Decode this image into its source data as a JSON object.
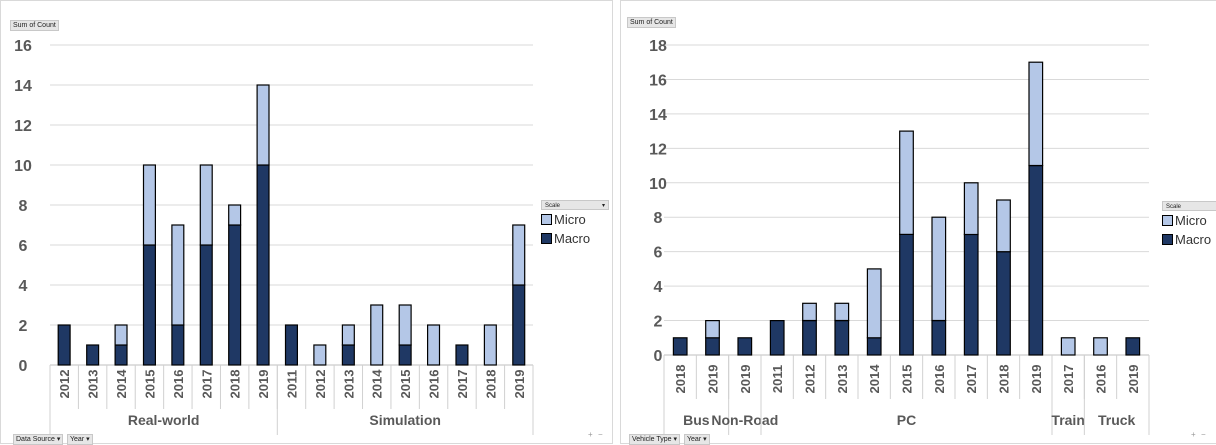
{
  "colors": {
    "micro": "#b4c7e7",
    "macro": "#1f3864",
    "outline": "#000000",
    "grid": "#d9d9d9",
    "tick": "#595959"
  },
  "labels": {
    "sum_of_count": "Sum of Count",
    "scale": "Scale",
    "micro": "Micro",
    "macro": "Macro",
    "plus": "+",
    "minus": "−"
  },
  "left": {
    "filter_data_source": "Data Source ▾",
    "filter_year": "Year ▾"
  },
  "right": {
    "filter_vehicle_type": "Vehicle Type ▾",
    "filter_year": "Year ▾"
  },
  "chart_data": [
    {
      "type": "bar",
      "stacked": true,
      "ylim": [
        0,
        16
      ],
      "yticks": [
        0,
        2,
        4,
        6,
        8,
        10,
        12,
        14,
        16
      ],
      "legend": "right",
      "grid": true,
      "categories": [
        "2012",
        "2013",
        "2014",
        "2015",
        "2016",
        "2017",
        "2018",
        "2019",
        "2011",
        "2012",
        "2013",
        "2014",
        "2015",
        "2016",
        "2017",
        "2018",
        "2019"
      ],
      "groups": [
        {
          "label": "Real-world",
          "count": 8
        },
        {
          "label": "Simulation",
          "count": 9
        }
      ],
      "series": [
        {
          "name": "Macro",
          "values": [
            2,
            1,
            1,
            6,
            2,
            6,
            7,
            10,
            2,
            0,
            1,
            0,
            1,
            0,
            1,
            0,
            4
          ]
        },
        {
          "name": "Micro",
          "values": [
            0,
            0,
            1,
            4,
            5,
            4,
            1,
            4,
            0,
            1,
            1,
            3,
            2,
            2,
            0,
            2,
            3
          ]
        }
      ]
    },
    {
      "type": "bar",
      "stacked": true,
      "ylim": [
        0,
        18
      ],
      "yticks": [
        0,
        2,
        4,
        6,
        8,
        10,
        12,
        14,
        16,
        18
      ],
      "legend": "right",
      "grid": true,
      "categories": [
        "2018",
        "2019",
        "2019",
        "2011",
        "2012",
        "2013",
        "2014",
        "2015",
        "2016",
        "2017",
        "2018",
        "2019",
        "2017",
        "2016",
        "2019"
      ],
      "groups": [
        {
          "label": "Bus",
          "count": 2
        },
        {
          "label": "Non-Road",
          "count": 1
        },
        {
          "label": "PC",
          "count": 9
        },
        {
          "label": "Train",
          "count": 1
        },
        {
          "label": "Truck",
          "count": 2
        }
      ],
      "series": [
        {
          "name": "Macro",
          "values": [
            1,
            1,
            1,
            2,
            2,
            2,
            1,
            7,
            2,
            7,
            6,
            11,
            0,
            0,
            1
          ]
        },
        {
          "name": "Micro",
          "values": [
            0,
            1,
            0,
            0,
            1,
            1,
            4,
            6,
            6,
            3,
            3,
            6,
            1,
            1,
            0
          ]
        }
      ]
    }
  ]
}
